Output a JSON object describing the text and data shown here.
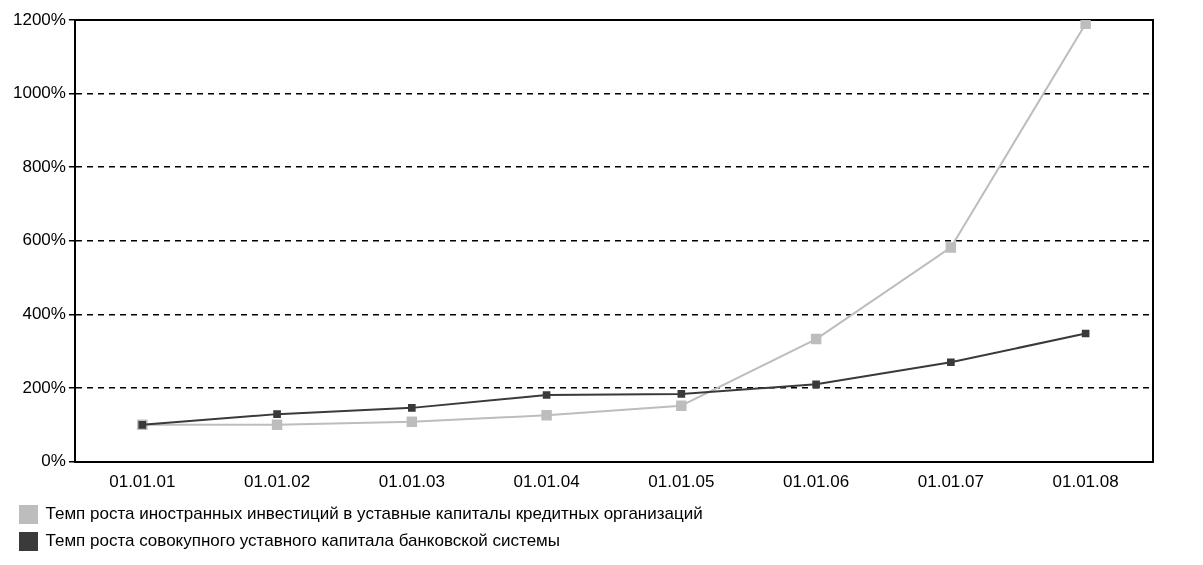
{
  "chart_data": {
    "type": "line",
    "categories": [
      "01.01.01",
      "01.01.02",
      "01.01.03",
      "01.01.04",
      "01.01.05",
      "01.01.06",
      "01.01.07",
      "01.01.08"
    ],
    "series": [
      {
        "name": "Темп роста иностранных инвестиций в уставные капиталы кредитных организаций",
        "color": "#bdbdbd",
        "values": [
          100,
          100,
          108,
          126,
          152,
          333,
          582,
          1190
        ]
      },
      {
        "name": "Темп роста совокупного уставного капитала банковской системы",
        "color": "#3a3a3a",
        "values": [
          100,
          129,
          146,
          181,
          184,
          210,
          270,
          348
        ]
      }
    ],
    "ylim": [
      0,
      1200
    ],
    "yticks": [
      {
        "value": 0,
        "label": "0%"
      },
      {
        "value": 200,
        "label": "200%"
      },
      {
        "value": 400,
        "label": "400%"
      },
      {
        "value": 600,
        "label": "600%"
      },
      {
        "value": 800,
        "label": "800%"
      },
      {
        "value": 1000,
        "label": "1000%"
      },
      {
        "value": 1200,
        "label": "1200%"
      }
    ],
    "grid": "y",
    "legend": "bottom",
    "marker": "square",
    "line_style": "solid"
  }
}
